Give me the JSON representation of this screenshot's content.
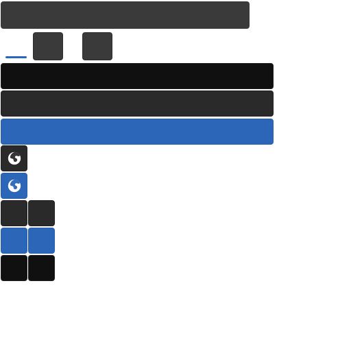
{
  "toolbar": {
    "title": "",
    "tab_active": "",
    "tile_buttons": [
      "",
      ""
    ]
  },
  "rows": {
    "dark_bar": "",
    "mid_bar": "",
    "blue_bar": ""
  },
  "icons": {
    "top": "globe-icon",
    "bottom": "globe-icon"
  },
  "grid": {
    "rows": [
      [
        "",
        ""
      ],
      [
        "",
        ""
      ],
      [
        "",
        ""
      ]
    ]
  },
  "colors": {
    "dark": "#101010",
    "mid": "#2a2a2a",
    "panel": "#3a3a3a",
    "accent": "#2c66b8"
  }
}
